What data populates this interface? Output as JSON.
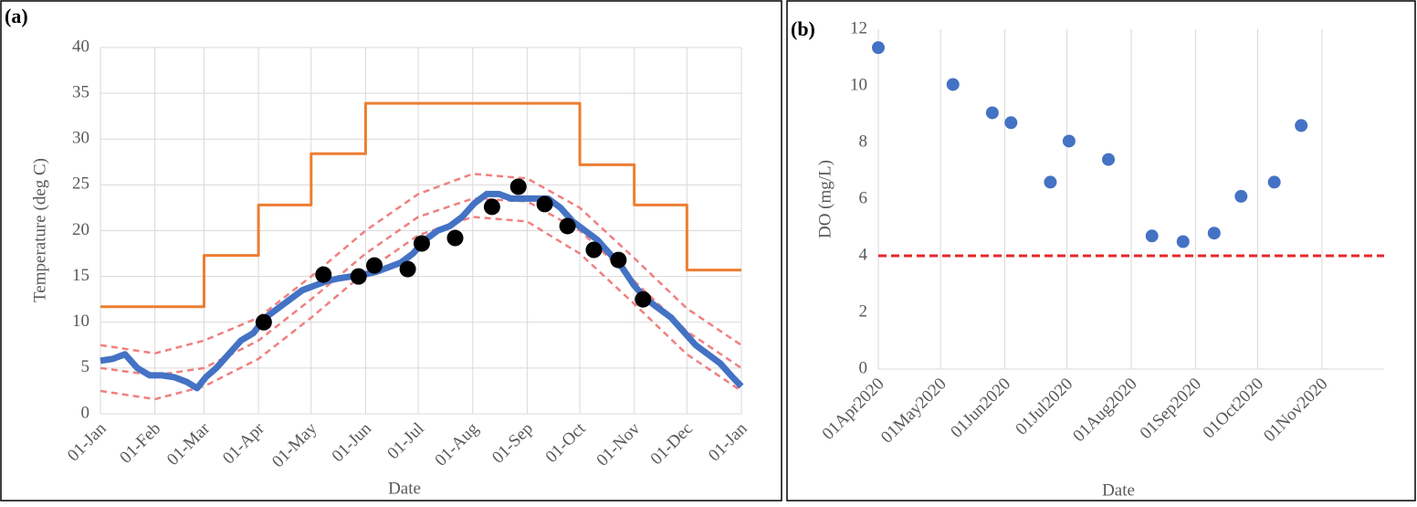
{
  "chart_data": [
    {
      "type": "line",
      "panel_label": "(a)",
      "y_label": "Temperature (deg C)",
      "x_label": "Date",
      "xlim": [
        0,
        365
      ],
      "xticks": [
        {
          "value": 0,
          "label": "01-Jan"
        },
        {
          "value": 31,
          "label": "01-Feb"
        },
        {
          "value": 59,
          "label": "01-Mar"
        },
        {
          "value": 90,
          "label": "01-Apr"
        },
        {
          "value": 120,
          "label": "01-May"
        },
        {
          "value": 151,
          "label": "01-Jun"
        },
        {
          "value": 181,
          "label": "01-Jul"
        },
        {
          "value": 212,
          "label": "01-Aug"
        },
        {
          "value": 243,
          "label": "01-Sep"
        },
        {
          "value": 273,
          "label": "01-Oct"
        },
        {
          "value": 304,
          "label": "01-Nov"
        },
        {
          "value": 334,
          "label": "01-Dec"
        },
        {
          "value": 365,
          "label": "01-Jan"
        }
      ],
      "ylim": [
        0,
        40
      ],
      "yticks": [
        0,
        5,
        10,
        15,
        20,
        25,
        30,
        35,
        40
      ],
      "grid": "both",
      "series": [
        {
          "style": "line",
          "color": "#ed7d31",
          "x": [
            0,
            59,
            59,
            90,
            90,
            120,
            120,
            151,
            151,
            273,
            273,
            304,
            304,
            334,
            334,
            365
          ],
          "values": [
            11.7,
            11.7,
            17.3,
            17.3,
            22.8,
            22.8,
            28.4,
            28.4,
            33.9,
            33.9,
            27.2,
            27.2,
            22.8,
            22.8,
            15.7,
            15.7
          ]
        },
        {
          "style": "dashed",
          "color": "#f08080",
          "x": [
            0,
            31,
            59,
            90,
            120,
            151,
            181,
            212,
            243,
            273,
            304,
            334,
            365
          ],
          "values": [
            7.5,
            6.6,
            8,
            10.5,
            15,
            20,
            24,
            26.2,
            25.7,
            22.5,
            17,
            11.5,
            7.5
          ]
        },
        {
          "style": "dashed",
          "color": "#f08080",
          "x": [
            0,
            31,
            59,
            90,
            120,
            151,
            181,
            212,
            243,
            273,
            304,
            334,
            365
          ],
          "values": [
            5,
            4.2,
            5,
            8,
            12.5,
            17.5,
            21.5,
            23.5,
            23.2,
            20,
            14.5,
            9,
            5
          ]
        },
        {
          "style": "dashed",
          "color": "#f08080",
          "x": [
            0,
            31,
            59,
            90,
            120,
            151,
            181,
            212,
            243,
            273,
            304,
            334,
            365
          ],
          "values": [
            2.5,
            1.6,
            3,
            6,
            10.5,
            15.5,
            19.5,
            21.5,
            21,
            17.5,
            12,
            6.5,
            2.5
          ]
        },
        {
          "style": "thick",
          "color": "#4472c4",
          "x": [
            0,
            7,
            14,
            21,
            28,
            35,
            42,
            49,
            55,
            60,
            66,
            73,
            80,
            87,
            94,
            101,
            108,
            115,
            122,
            129,
            136,
            143,
            150,
            157,
            164,
            171,
            178,
            185,
            192,
            199,
            206,
            213,
            220,
            227,
            234,
            241,
            248,
            255,
            262,
            269,
            276,
            283,
            290,
            297,
            304,
            311,
            318,
            325,
            332,
            339,
            346,
            353,
            360,
            365
          ],
          "values": [
            5.8,
            6,
            6.5,
            5,
            4.2,
            4.2,
            4,
            3.5,
            2.8,
            4,
            5,
            6.5,
            8,
            8.8,
            10.5,
            11.5,
            12.5,
            13.5,
            14,
            14.5,
            14.8,
            15,
            15.2,
            15.5,
            16,
            16.5,
            17.5,
            19,
            20,
            20.5,
            21.5,
            23,
            24,
            24,
            23.5,
            23.5,
            23.5,
            23.5,
            22.5,
            21,
            20,
            19,
            17.5,
            16,
            14,
            12.5,
            11.5,
            10.5,
            9,
            7.5,
            6.5,
            5.5,
            4,
            3
          ]
        },
        {
          "style": "markers",
          "color": "#000000",
          "x": [
            93,
            127,
            147,
            156,
            175,
            183,
            202,
            223,
            238,
            253,
            266,
            281,
            295,
            309
          ],
          "values": [
            10,
            15.2,
            15,
            16.2,
            15.8,
            18.6,
            19.2,
            22.6,
            24.8,
            22.9,
            20.5,
            17.9,
            16.8,
            12.5
          ]
        }
      ]
    },
    {
      "type": "scatter",
      "panel_label": "(b)",
      "y_label": "DO (mg/L)",
      "x_label": "Date",
      "xlim": [
        "2020-04-01",
        "2020-12-01"
      ],
      "xticks": [
        {
          "value": "2020-04-01",
          "label": "01Apr2020"
        },
        {
          "value": "2020-05-01",
          "label": "01May2020"
        },
        {
          "value": "2020-06-01",
          "label": "01Jun2020"
        },
        {
          "value": "2020-07-01",
          "label": "01Jul2020"
        },
        {
          "value": "2020-08-01",
          "label": "01Aug2020"
        },
        {
          "value": "2020-09-01",
          "label": "01Sep2020"
        },
        {
          "value": "2020-10-01",
          "label": "01Oct2020"
        },
        {
          "value": "2020-11-01",
          "label": "01Nov2020"
        }
      ],
      "ylim": [
        0,
        12
      ],
      "yticks": [
        0,
        2,
        4,
        6,
        8,
        10,
        12
      ],
      "grid": "x",
      "reference_line": {
        "value": 4,
        "color": "#e8262a"
      },
      "series": [
        {
          "style": "markers",
          "color": "#4472c4",
          "x": [
            "2020-04-01",
            "2020-05-07",
            "2020-05-26",
            "2020-06-04",
            "2020-06-23",
            "2020-07-02",
            "2020-07-21",
            "2020-08-11",
            "2020-08-26",
            "2020-09-10",
            "2020-09-23",
            "2020-10-09",
            "2020-10-22"
          ],
          "values": [
            11.35,
            10.05,
            9.05,
            8.7,
            6.6,
            8.05,
            7.4,
            4.7,
            4.5,
            4.8,
            6.1,
            6.6,
            8.6
          ]
        }
      ]
    }
  ]
}
